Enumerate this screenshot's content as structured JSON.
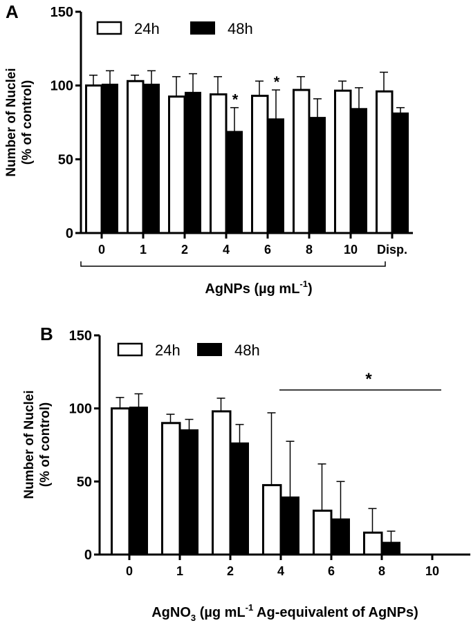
{
  "figure": {
    "panels": [
      "A",
      "B"
    ]
  },
  "chart_data": [
    {
      "panel_label": "A",
      "type": "bar",
      "title": "",
      "xlabel": "AgNPs (µg mL⁻¹)",
      "xlabel_parts": {
        "main": "AgNPs (µg mL",
        "sup": "-1",
        "end": ")"
      },
      "ylabel": [
        "Number of Nuclei",
        "(% of control)"
      ],
      "ylim": [
        0,
        150
      ],
      "yticks": [
        0,
        50,
        100,
        150
      ],
      "grid": false,
      "legend_position": "top-left inside",
      "categories": [
        "0",
        "1",
        "2",
        "4",
        "6",
        "8",
        "10",
        "Disp."
      ],
      "bracket": {
        "from": "0",
        "to": "10"
      },
      "series": [
        {
          "name": "24h",
          "fill": "#ffffff",
          "values": [
            100,
            103,
            92.5,
            94,
            93,
            97,
            96.5,
            96
          ],
          "error_upper": [
            107,
            107,
            106,
            106,
            103,
            106,
            103,
            109
          ]
        },
        {
          "name": "48h",
          "fill": "#000000",
          "values": [
            100.5,
            100.5,
            95,
            68.5,
            77,
            78,
            84,
            81
          ],
          "error_upper": [
            110,
            110,
            108,
            85,
            97,
            91,
            98.5,
            85
          ]
        }
      ],
      "annotations": [
        {
          "text": "*",
          "category": "4",
          "series": "48h"
        },
        {
          "text": "*",
          "category": "6",
          "series": "48h"
        }
      ]
    },
    {
      "panel_label": "B",
      "type": "bar",
      "title": "",
      "xlabel": "AgNO₃ (µg mL⁻¹ Ag-equivalent of AgNPs)",
      "xlabel_parts": {
        "a": "AgNO",
        "sub": "3",
        "b": " (µg mL",
        "sup": "-1",
        "c": " Ag-equivalent of AgNPs)"
      },
      "ylabel": [
        "Number of Nuclei",
        "(% of control)"
      ],
      "ylim": [
        0,
        150
      ],
      "yticks": [
        0,
        50,
        100,
        150
      ],
      "grid": false,
      "legend_position": "top-left inside",
      "categories": [
        "0",
        "1",
        "2",
        "4",
        "6",
        "8",
        "10"
      ],
      "series": [
        {
          "name": "24h",
          "fill": "#ffffff",
          "values": [
            100,
            90,
            98,
            47.5,
            30,
            15,
            0
          ],
          "error_upper": [
            107.5,
            96,
            107,
            97,
            62,
            31.5,
            0
          ]
        },
        {
          "name": "48h",
          "fill": "#000000",
          "values": [
            100.5,
            85,
            76,
            39,
            24,
            8,
            0
          ],
          "error_upper": [
            110,
            92.5,
            89,
            77.5,
            50,
            16,
            0
          ]
        }
      ],
      "annotations": [
        {
          "text": "*",
          "type": "significance-line",
          "from": "4",
          "to": "10"
        }
      ]
    }
  ],
  "colors": {
    "axis": "#000000",
    "bar_24h": "#ffffff",
    "bar_48h": "#000000",
    "background": "#ffffff"
  }
}
